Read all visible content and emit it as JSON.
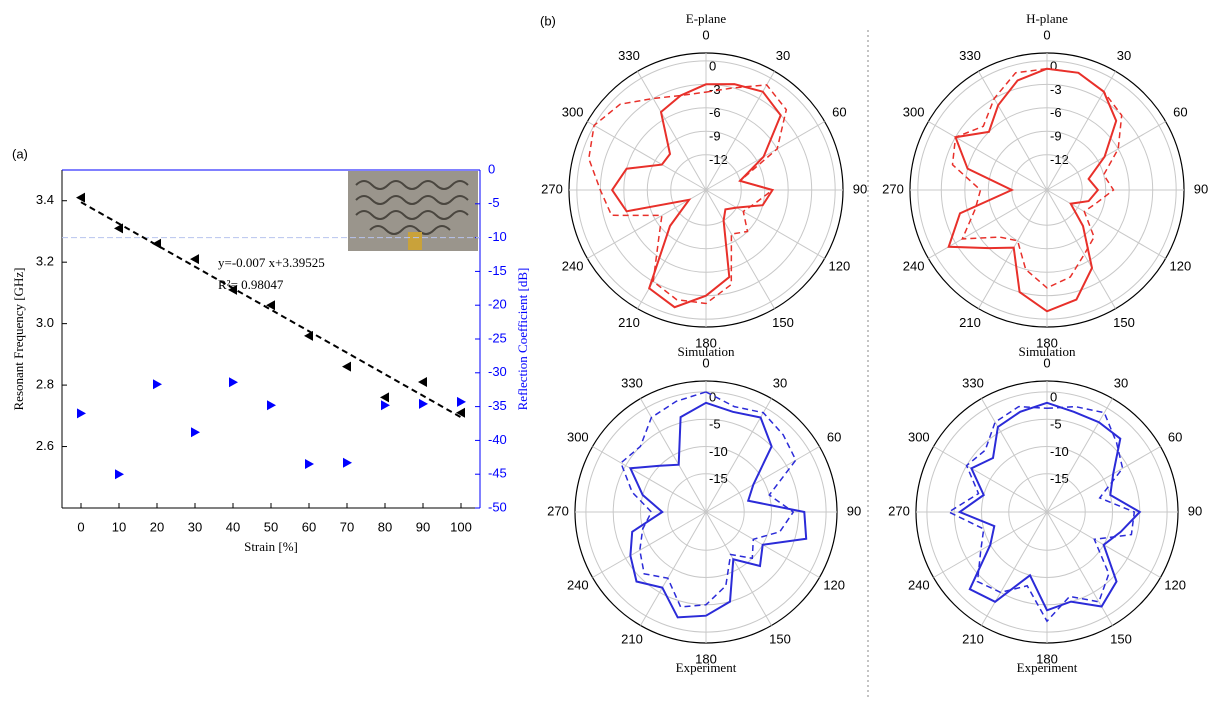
{
  "chart_data": [
    {
      "type": "scatter",
      "panel": "(a)",
      "xlabel": "Strain [%]",
      "ylabel": "Resonant Frequency [GHz]",
      "y2label": "Reflection Coefficient [dB]",
      "x": [
        0,
        10,
        20,
        30,
        40,
        50,
        60,
        70,
        80,
        90,
        100
      ],
      "series": [
        {
          "color": "#000000",
          "marker": "triangle-left",
          "axis": "y",
          "values": [
            3.41,
            3.31,
            3.26,
            3.21,
            3.11,
            3.06,
            2.96,
            2.86,
            2.76,
            2.81,
            2.71
          ]
        },
        {
          "color": "#0000ff",
          "marker": "triangle-right",
          "axis": "y2",
          "values": [
            -36,
            -45,
            -31.7,
            -38.8,
            -31.4,
            -34.8,
            -43.5,
            -43.3,
            -34.8,
            -34.6,
            -34.3
          ]
        }
      ],
      "fit": {
        "slope": -0.007,
        "intercept": 3.39525,
        "color": "#000000"
      },
      "ref_y2": -10,
      "annotations": [
        "y=-0.007 x+3.39525",
        "R²= 0.98047"
      ],
      "xlim": [
        -5,
        105
      ],
      "xticks": [
        0,
        10,
        20,
        30,
        40,
        50,
        60,
        70,
        80,
        90,
        100
      ],
      "ylim": [
        2.4,
        3.5
      ],
      "yticks": [
        2.6,
        2.8,
        {
          "value": 3,
          "label": "3.0"
        },
        3.2,
        3.4
      ],
      "y2lim": [
        -50,
        0
      ],
      "y2ticks": [
        0,
        -5,
        -10,
        -15,
        -20,
        -25,
        -30,
        -35,
        -40,
        -45,
        -50
      ]
    },
    {
      "type": "polar",
      "panel": "(b)",
      "title": "E-plane",
      "caption": "Simulation",
      "color": "#e8302a",
      "theta": [
        0,
        15,
        30,
        45,
        60,
        75,
        90,
        105,
        120,
        135,
        150,
        165,
        180,
        195,
        210,
        225,
        240,
        255,
        270,
        285,
        300,
        315,
        330,
        345
      ],
      "thetaticks": [
        0,
        30,
        60,
        90,
        120,
        150,
        180,
        210,
        240,
        270,
        300,
        330
      ],
      "rlim": [
        -16.5,
        1
      ],
      "rticks": [
        0,
        -3,
        -6,
        -9,
        -12
      ],
      "series": [
        {
          "style": "solid",
          "values": [
            -3,
            -2.5,
            -2,
            -3,
            -8,
            -12,
            -8,
            -9,
            -12,
            -13,
            -12,
            -5,
            -3,
            -1,
            -2,
            -10,
            -14,
            -6,
            -4.5,
            -6,
            -10,
            -10,
            -5,
            -4
          ]
        },
        {
          "style": "dashed",
          "values": [
            -4,
            -3,
            -1,
            -2,
            -6,
            -12,
            -8,
            -10,
            -11,
            -9,
            -10,
            -4,
            -2,
            -2,
            -3,
            -8,
            -10,
            -4,
            -3,
            -1,
            0,
            -1,
            -3,
            -4
          ]
        }
      ]
    },
    {
      "type": "polar",
      "title": "H-plane",
      "caption": "Simulation",
      "color": "#e8302a",
      "theta": [
        0,
        15,
        30,
        45,
        60,
        75,
        90,
        105,
        120,
        135,
        150,
        165,
        180,
        195,
        210,
        225,
        240,
        255,
        270,
        285,
        300,
        315,
        330,
        345
      ],
      "thetaticks": [
        0,
        30,
        60,
        90,
        120,
        150,
        180,
        210,
        240,
        270,
        300,
        330
      ],
      "rlim": [
        -16.5,
        1
      ],
      "rticks": [
        0,
        -3,
        -6,
        -9,
        -12
      ],
      "series": [
        {
          "style": "solid",
          "values": [
            -1,
            -1,
            -2,
            -4,
            -8,
            -11,
            -10,
            -11,
            -13,
            -10,
            -5,
            -2,
            -1,
            -3,
            -8,
            -6,
            -2,
            -5,
            -12,
            -6,
            -3,
            -6,
            -4,
            -2
          ]
        },
        {
          "style": "dashed",
          "values": [
            -1,
            -1,
            -2,
            -3,
            -6,
            -9,
            -8,
            -10,
            -11,
            -8,
            -7,
            -5,
            -4,
            -6,
            -9,
            -8,
            -4,
            -7,
            -8,
            -4,
            -3,
            -5,
            -3,
            -1
          ]
        }
      ]
    },
    {
      "type": "polar",
      "caption": "Experiment",
      "color": "#2b2bd8",
      "theta": [
        0,
        15,
        30,
        45,
        60,
        75,
        90,
        105,
        120,
        135,
        150,
        165,
        180,
        195,
        210,
        225,
        240,
        255,
        270,
        285,
        300,
        315,
        330,
        345
      ],
      "thetaticks": [
        0,
        30,
        60,
        90,
        120,
        150,
        180,
        210,
        240,
        270,
        300,
        330
      ],
      "rlim": [
        -22,
        2
      ],
      "rticks": [
        0,
        -5,
        -10,
        -15
      ],
      "series": [
        {
          "style": "solid",
          "values": [
            -2,
            -3,
            -2,
            -5,
            -12,
            -14,
            -4,
            -3,
            -10,
            -8,
            -12,
            -5,
            -3,
            -2,
            -6,
            -4,
            -6,
            -8,
            -14,
            -10,
            -6,
            -10,
            -12,
            -4
          ]
        },
        {
          "style": "dashed",
          "values": [
            0,
            -2,
            -1,
            -2,
            -3,
            -10,
            -6,
            -8,
            -12,
            -10,
            -13,
            -8,
            -5,
            -4,
            -8,
            -6,
            -8,
            -10,
            -12,
            -8,
            -4,
            -5,
            -2,
            -1
          ]
        }
      ]
    },
    {
      "type": "polar",
      "caption": "Experiment",
      "color": "#2b2bd8",
      "theta": [
        0,
        15,
        30,
        45,
        60,
        75,
        90,
        105,
        120,
        135,
        150,
        165,
        180,
        195,
        210,
        225,
        240,
        255,
        270,
        285,
        300,
        315,
        330,
        345
      ],
      "thetaticks": [
        0,
        30,
        60,
        90,
        120,
        150,
        180,
        210,
        240,
        270,
        300,
        330
      ],
      "rlim": [
        -22,
        2
      ],
      "rticks": [
        0,
        -5,
        -10,
        -15
      ],
      "series": [
        {
          "style": "solid",
          "values": [
            -2,
            -3,
            -3,
            -3,
            -8,
            -10,
            -5,
            -8,
            -10,
            -4,
            -2,
            -5,
            -4,
            -10,
            -3,
            -2,
            -10,
            -12,
            -6,
            -10,
            -6,
            -8,
            -4,
            -3
          ]
        },
        {
          "style": "dashed",
          "values": [
            -3,
            -2,
            -1,
            -4,
            -6,
            -12,
            -6,
            -6,
            -12,
            -6,
            -3,
            -6,
            -2,
            -8,
            -5,
            -4,
            -8,
            -10,
            -4,
            -9,
            -5,
            -6,
            -3,
            -2
          ]
        }
      ]
    }
  ]
}
